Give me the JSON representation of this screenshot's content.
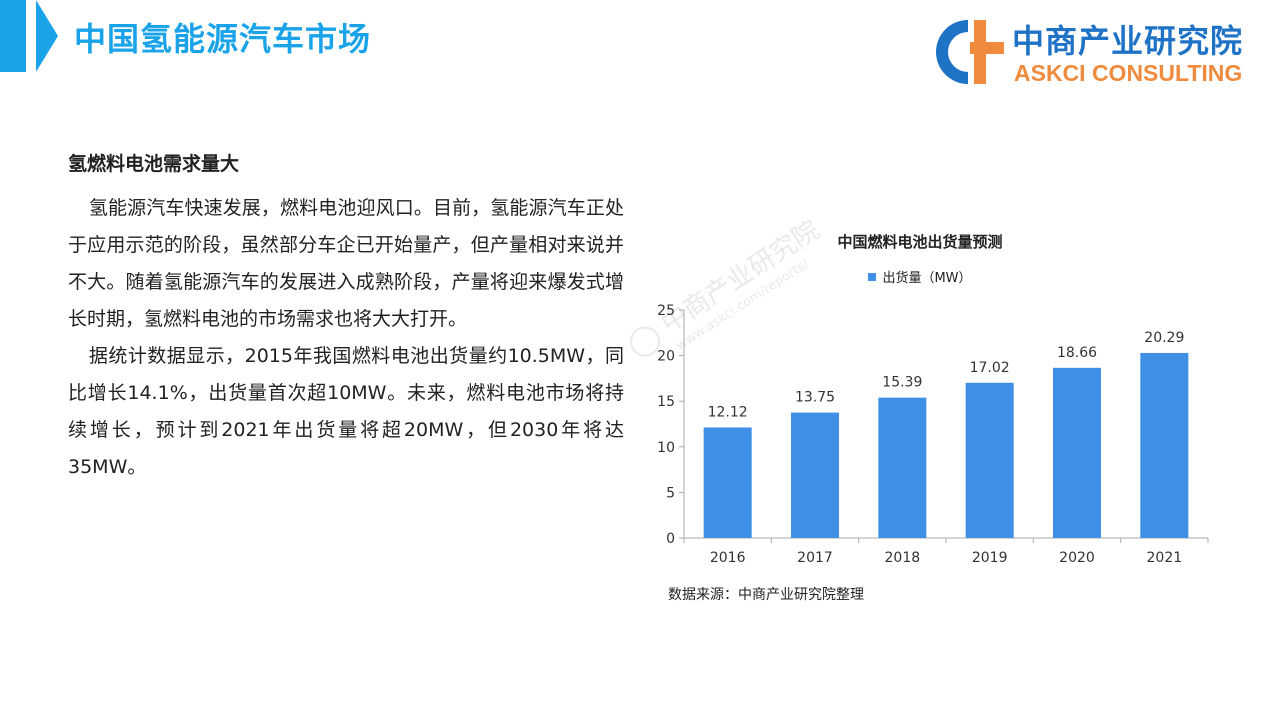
{
  "header": {
    "title": "中国氢能源汽车市场",
    "accent_color": "#1aa3e8"
  },
  "logo": {
    "name": "中商产业研究院",
    "subname": "ASKCI CONSULTING",
    "icon": "askci-logo-icon",
    "primary_color": "#1f73c6",
    "secondary_color": "#f08b3e"
  },
  "article": {
    "heading": "氢燃料电池需求量大",
    "paragraphs": [
      "氢能源汽车快速发展，燃料电池迎风口。目前，氢能源汽车正处于应用示范的阶段，虽然部分车企已开始量产，但产量相对来说并不大。随着氢能源汽车的发展进入成熟阶段，产量将迎来爆发式增长时期，氢燃料电池的市场需求也将大大打开。",
      "据统计数据显示，2015年我国燃料电池出货量约10.5MW，同比增长14.1%，出货量首次超10MW。未来，燃料电池市场将持续增长，预计到2021年出货量将超20MW，但2030年将达35MW。"
    ]
  },
  "chart_data": {
    "type": "bar",
    "title": "中国燃料电池出货量预测",
    "categories": [
      "2016",
      "2017",
      "2018",
      "2019",
      "2020",
      "2021"
    ],
    "series": [
      {
        "name": "出货量（MW）",
        "values": [
          12.12,
          13.75,
          15.39,
          17.02,
          18.66,
          20.29
        ],
        "color": "#3f8fe6"
      }
    ],
    "xlabel": "",
    "ylabel": "",
    "ylim": [
      0,
      25
    ],
    "yticks": [
      0,
      5,
      10,
      15,
      20,
      25
    ],
    "grid": false,
    "legend_position": "top",
    "data_labels": true
  },
  "watermark": {
    "brand": "中商产业研究院",
    "url": "www.askci.com/reports/"
  },
  "source_note": "数据来源：中商产业研究院整理"
}
